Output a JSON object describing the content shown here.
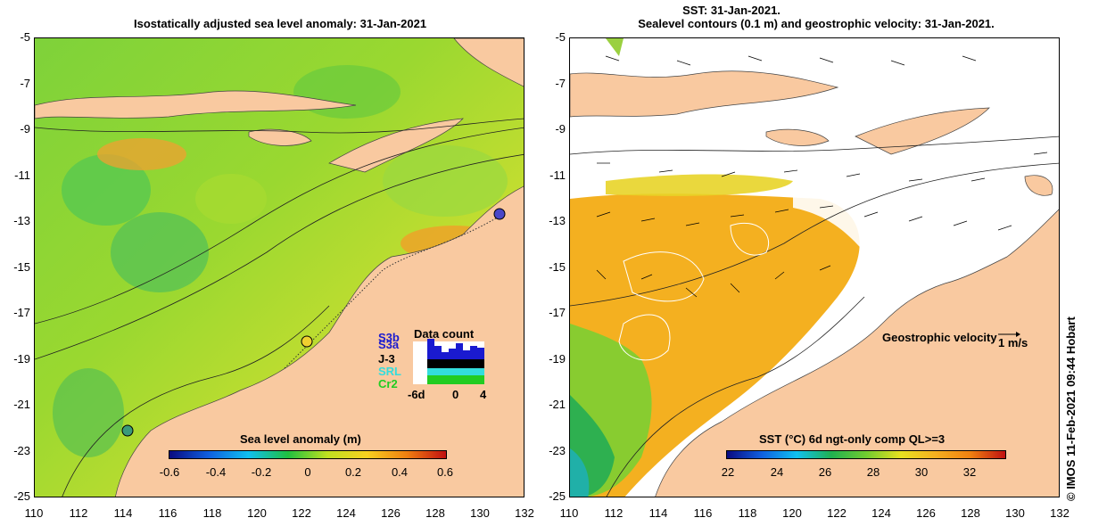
{
  "left": {
    "title": "Isostatically adjusted sea level anomaly: 31-Jan-2021",
    "colorbar": {
      "label": "Sea level anomaly (m)",
      "ticks": [
        "-0.6",
        "-0.4",
        "-0.2",
        "0",
        "0.2",
        "0.4",
        "0.6"
      ]
    },
    "data_count": {
      "title": "Data count",
      "satellites": [
        {
          "name": "S3b",
          "color": "#1a1ad0"
        },
        {
          "name": "S3a",
          "color": "#1a1ad0"
        },
        {
          "name": "J-3",
          "color": "#000000"
        },
        {
          "name": "SRL",
          "color": "#33dddd"
        },
        {
          "name": "Cr2",
          "color": "#22cc22"
        }
      ],
      "x_ticks": [
        "-6d",
        "0",
        "4"
      ]
    }
  },
  "right": {
    "title_line1": "SST: 31-Jan-2021.",
    "title_line2": "Sealevel contours (0.1 m) and geostrophic velocity: 31-Jan-2021.",
    "velocity_label": "Geostrophic velocity",
    "velocity_scale": "1 m/s",
    "colorbar": {
      "label": "SST (°C) 6d ngt-only comp QL>=3",
      "ticks": [
        "22",
        "24",
        "26",
        "28",
        "30",
        "32"
      ]
    }
  },
  "axes": {
    "y_ticks": [
      "-5",
      "-7",
      "-9",
      "-11",
      "-13",
      "-15",
      "-17",
      "-19",
      "-21",
      "-23",
      "-25"
    ],
    "x_ticks": [
      "110",
      "112",
      "114",
      "116",
      "118",
      "120",
      "122",
      "124",
      "126",
      "128",
      "130",
      "132"
    ]
  },
  "credit": "© IMOS 11-Feb-2021 09:44 Hobart",
  "colors": {
    "land": "#f9c9a0",
    "sla_mid": "#8ad634",
    "sst_warm": "#f4b020",
    "background": "#ffffff"
  }
}
